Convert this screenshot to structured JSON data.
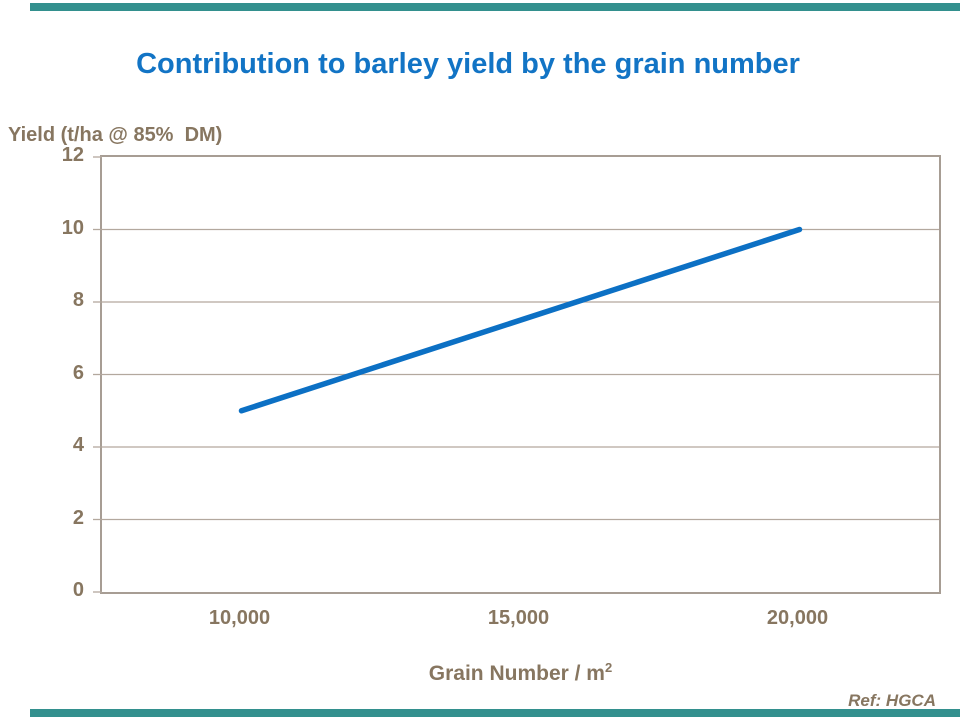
{
  "slide": {
    "reference": "Ref: HGCA"
  },
  "colors": {
    "background": "#ffffff",
    "title_blue": "#1274c5",
    "line_blue": "#0c70c4",
    "text_brown": "#877660",
    "axis_border": "#a79d94",
    "gridline": "#b3a89e",
    "teal_bar": "#33908e"
  },
  "chart_data": {
    "type": "line",
    "title": "Contribution to barley yield by the grain number",
    "ylabel": "Yield (t/ha @ 85%  DM)",
    "xlabel_base": "Grain Number / m",
    "xlabel_superscript": "2",
    "xlim": [
      7500,
      22500
    ],
    "ylim": [
      0,
      12
    ],
    "xticks": [
      {
        "value": 10000,
        "label": "10,000"
      },
      {
        "value": 15000,
        "label": "15,000"
      },
      {
        "value": 20000,
        "label": "20,000"
      }
    ],
    "yticks": [
      {
        "value": 0,
        "label": "0"
      },
      {
        "value": 2,
        "label": "2"
      },
      {
        "value": 4,
        "label": "4"
      },
      {
        "value": 6,
        "label": "6"
      },
      {
        "value": 8,
        "label": "8"
      },
      {
        "value": 10,
        "label": "10"
      },
      {
        "value": 12,
        "label": "12"
      }
    ],
    "grid": "horizontal",
    "legend": "none",
    "series": [
      {
        "name": "Yield",
        "color": "#0c70c4",
        "points": [
          [
            10000,
            5
          ],
          [
            20000,
            10
          ]
        ]
      }
    ]
  }
}
